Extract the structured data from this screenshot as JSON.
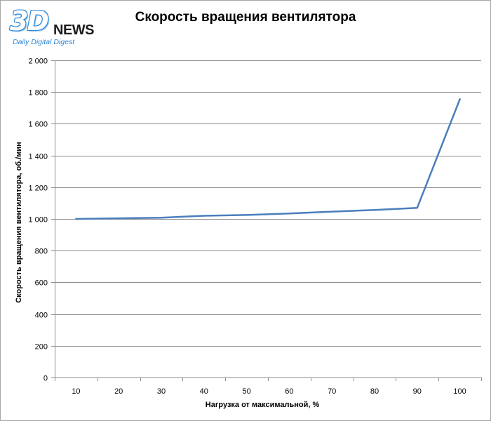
{
  "logo": {
    "brand_3d": "3D",
    "brand_news": "NEWS",
    "tagline": "Daily Digital Digest"
  },
  "chart_data": {
    "type": "line",
    "title": "Скорость вращения вентилятора",
    "xlabel": "Нагрузка  от максимальной,  %",
    "ylabel": "Скорость  вращения вентилятора,  об./мин",
    "categories": [
      "10",
      "20",
      "30",
      "40",
      "50",
      "60",
      "70",
      "80",
      "90",
      "100"
    ],
    "series": [
      {
        "values": [
          1000,
          1004,
          1008,
          1020,
          1025,
          1034,
          1046,
          1056,
          1070,
          1755
        ]
      }
    ],
    "ylim": [
      0,
      2000
    ],
    "yticks": [
      0,
      200,
      400,
      600,
      800,
      1000,
      1200,
      1400,
      1600,
      1800,
      2000
    ],
    "ytick_labels": [
      "0",
      "200",
      "400",
      "600",
      "800",
      "1 000",
      "1 200",
      "1 400",
      "1 600",
      "1 800",
      "2 000"
    ],
    "grid": true,
    "line_color": "#4a7ebb",
    "grid_color": "#8c8c8c",
    "axis_color": "#8c8c8c"
  }
}
